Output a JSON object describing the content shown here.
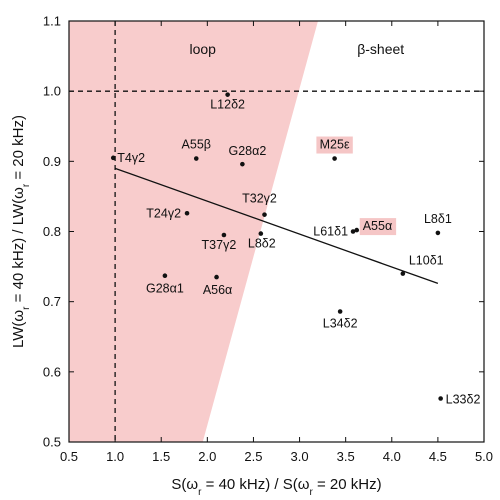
{
  "chart_data": {
    "type": "scatter",
    "xlabel_parts": [
      "S(ω",
      "r",
      " = 40 kHz) / S(ω",
      "r",
      " = 20 kHz)"
    ],
    "ylabel_parts": [
      "LW(ω",
      "r",
      " = 40 kHz) / LW(ω",
      "r",
      " = 20 kHz)"
    ],
    "xlim": [
      0.5,
      5.0
    ],
    "ylim": [
      0.5,
      1.1
    ],
    "xticks": [
      "0.5",
      "1.0",
      "1.5",
      "2.0",
      "2.5",
      "3.0",
      "3.5",
      "4.0",
      "4.5",
      "5.0"
    ],
    "yticks": [
      "0.5",
      "0.6",
      "0.7",
      "0.8",
      "0.9",
      "1.0",
      "1.1"
    ],
    "region_labels": {
      "loop": "loop",
      "sheet": "β-sheet"
    },
    "loop_region": {
      "top_x": 3.2,
      "bottom_x": 1.95,
      "color": "#f8cccc"
    },
    "reference_lines": {
      "x": 1.0,
      "y": 1.0
    },
    "fit_line": {
      "x": [
        1.0,
        4.5
      ],
      "y": [
        0.89,
        0.726
      ]
    },
    "highlight_color": "#f5c6c6",
    "points": [
      {
        "label": "L12δ2",
        "x": 2.22,
        "y": 0.995
      },
      {
        "label": "T4γ2",
        "x": 0.98,
        "y": 0.905
      },
      {
        "label": "A55β",
        "x": 1.88,
        "y": 0.904
      },
      {
        "label": "G28α2",
        "x": 2.38,
        "y": 0.896
      },
      {
        "label": "M25ε",
        "x": 3.38,
        "y": 0.904,
        "highlight": true
      },
      {
        "label": "T24γ2",
        "x": 1.78,
        "y": 0.826
      },
      {
        "label": "T32γ2",
        "x": 2.62,
        "y": 0.824
      },
      {
        "label": "T37γ2",
        "x": 2.18,
        "y": 0.795
      },
      {
        "label": "L8δ2",
        "x": 2.58,
        "y": 0.797
      },
      {
        "label": "L61δ1",
        "x": 3.58,
        "y": 0.8
      },
      {
        "label": "A55α",
        "x": 3.62,
        "y": 0.802,
        "highlight": true
      },
      {
        "label": "L8δ1",
        "x": 4.5,
        "y": 0.798
      },
      {
        "label": "L10δ1",
        "x": 4.12,
        "y": 0.74
      },
      {
        "label": "G28α1",
        "x": 1.54,
        "y": 0.737
      },
      {
        "label": "A56α",
        "x": 2.1,
        "y": 0.735
      },
      {
        "label": "L34δ2",
        "x": 3.44,
        "y": 0.686
      },
      {
        "label": "L33δ2",
        "x": 4.53,
        "y": 0.562
      }
    ]
  }
}
